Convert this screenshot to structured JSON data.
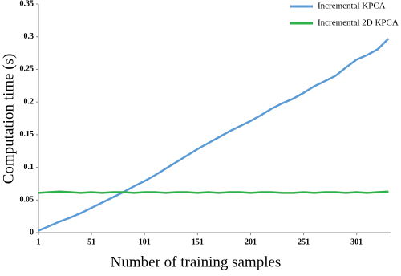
{
  "chart_data": {
    "type": "line",
    "xlabel": "Number of training samples",
    "ylabel": "Computation time (s)",
    "x": [
      1,
      11,
      21,
      31,
      41,
      51,
      61,
      71,
      81,
      91,
      101,
      111,
      121,
      131,
      141,
      151,
      161,
      171,
      181,
      191,
      201,
      211,
      221,
      231,
      241,
      251,
      261,
      271,
      281,
      291,
      301,
      311,
      321,
      331
    ],
    "series": [
      {
        "name": "Incremental KPCA",
        "color": "#5b9bd5",
        "values": [
          0.003,
          0.01,
          0.017,
          0.023,
          0.03,
          0.038,
          0.046,
          0.054,
          0.062,
          0.071,
          0.079,
          0.088,
          0.098,
          0.108,
          0.118,
          0.128,
          0.137,
          0.146,
          0.155,
          0.163,
          0.171,
          0.18,
          0.19,
          0.198,
          0.205,
          0.214,
          0.224,
          0.232,
          0.24,
          0.253,
          0.265,
          0.272,
          0.281,
          0.297
        ]
      },
      {
        "name": "Incremental 2D KPCA",
        "color": "#2eb04a",
        "values": [
          0.061,
          0.062,
          0.063,
          0.062,
          0.061,
          0.062,
          0.061,
          0.062,
          0.062,
          0.061,
          0.062,
          0.062,
          0.061,
          0.062,
          0.062,
          0.061,
          0.062,
          0.061,
          0.062,
          0.062,
          0.061,
          0.062,
          0.062,
          0.061,
          0.061,
          0.062,
          0.061,
          0.062,
          0.062,
          0.061,
          0.062,
          0.061,
          0.062,
          0.063
        ]
      }
    ],
    "xlim": [
      1,
      333
    ],
    "xticks": [
      1,
      51,
      101,
      151,
      201,
      251,
      301
    ],
    "ylim": [
      0,
      0.35
    ],
    "yticks": [
      0,
      0.05,
      0.1,
      0.15,
      0.2,
      0.25,
      0.3,
      0.35
    ],
    "grid": false,
    "legend": "top-right"
  }
}
